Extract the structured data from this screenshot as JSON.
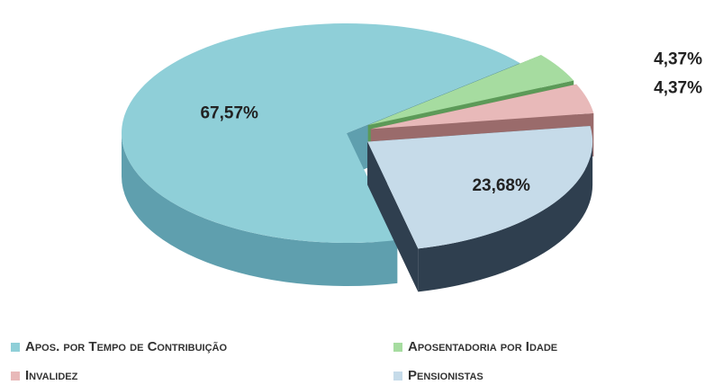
{
  "chart_data": {
    "type": "pie",
    "categories": [
      "Apos. por Tempo de Contribuição",
      "Aposentadoria por Idade",
      "Invalidez",
      "Pensionistas"
    ],
    "values": [
      67.57,
      4.37,
      4.37,
      23.68
    ],
    "value_labels": [
      "67,57%",
      "4,37%",
      "4,37%",
      "23,68%"
    ],
    "colors": [
      "#8fcfd8",
      "#a6dca0",
      "#e8b9b9",
      "#c6dbe9"
    ],
    "side_colors": [
      "#5f9fae",
      "#5c9a58",
      "#9a6b6b",
      "#2f3f4f"
    ],
    "exploded": [
      false,
      true,
      true,
      true
    ]
  }
}
